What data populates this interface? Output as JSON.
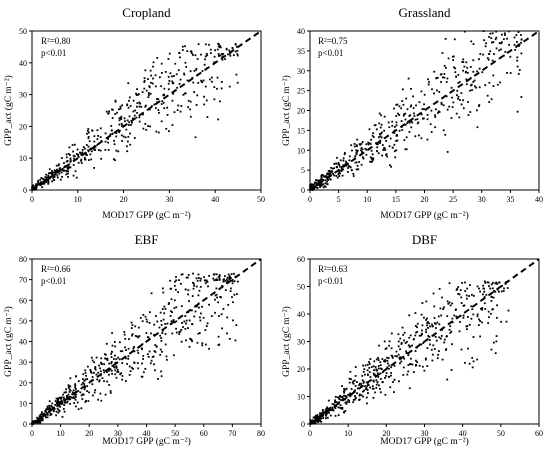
{
  "chart_data": [
    {
      "type": "scatter",
      "title": "Cropland",
      "xlabel": "MOD17 GPP (gC m⁻²)",
      "ylabel": "GPP_act (gC m⁻²)",
      "xlim": [
        0,
        50
      ],
      "ylim": [
        0,
        50
      ],
      "xticks": [
        0,
        10,
        20,
        30,
        40,
        50
      ],
      "yticks": [
        0,
        10,
        20,
        30,
        40,
        50
      ],
      "r2_text": "R²=0.80",
      "p_text": "p<0.01",
      "fit_line": [
        [
          0,
          0
        ],
        [
          50,
          50
        ]
      ],
      "n_points": 520,
      "point_extent": [
        [
          0,
          0
        ],
        [
          45,
          46
        ]
      ],
      "seed": 11
    },
    {
      "type": "scatter",
      "title": "Grassland",
      "xlabel": "MOD17 GPP (gC m⁻²)",
      "ylabel": "GPP_act (gC m⁻²)",
      "xlim": [
        0,
        40
      ],
      "ylim": [
        0,
        40
      ],
      "xticks": [
        0,
        5,
        10,
        15,
        20,
        25,
        30,
        35,
        40
      ],
      "yticks": [
        0,
        5,
        10,
        15,
        20,
        25,
        30,
        35,
        40
      ],
      "r2_text": "R²=0.75",
      "p_text": "p<0.01",
      "fit_line": [
        [
          0,
          0
        ],
        [
          40,
          40
        ]
      ],
      "n_points": 540,
      "point_extent": [
        [
          0,
          0
        ],
        [
          37,
          40
        ]
      ],
      "seed": 23
    },
    {
      "type": "scatter",
      "title": "EBF",
      "xlabel": "MOD17 GPP (gC m⁻²)",
      "ylabel": "GPP_act (gC m⁻²)",
      "xlim": [
        0,
        80
      ],
      "ylim": [
        0,
        80
      ],
      "xticks": [
        0,
        10,
        20,
        30,
        40,
        50,
        60,
        70,
        80
      ],
      "yticks": [
        0,
        10,
        20,
        30,
        40,
        50,
        60,
        70,
        80
      ],
      "r2_text": "R²=0.66",
      "p_text": "p<0.01",
      "fit_line": [
        [
          0,
          0
        ],
        [
          80,
          80
        ]
      ],
      "n_points": 620,
      "point_extent": [
        [
          0,
          0
        ],
        [
          72,
          73
        ]
      ],
      "seed": 37
    },
    {
      "type": "scatter",
      "title": "DBF",
      "xlabel": "MOD17 GPP (gC m⁻²)",
      "ylabel": "GPP_act (gC m⁻²)",
      "xlim": [
        0,
        60
      ],
      "ylim": [
        0,
        60
      ],
      "xticks": [
        0,
        10,
        20,
        30,
        40,
        50,
        60
      ],
      "yticks": [
        0,
        10,
        20,
        30,
        40,
        50,
        60
      ],
      "r2_text": "R²=0.63",
      "p_text": "p<0.01",
      "fit_line": [
        [
          0,
          0
        ],
        [
          60,
          60
        ]
      ],
      "n_points": 600,
      "point_extent": [
        [
          0,
          0
        ],
        [
          52,
          52
        ]
      ],
      "seed": 53
    }
  ]
}
